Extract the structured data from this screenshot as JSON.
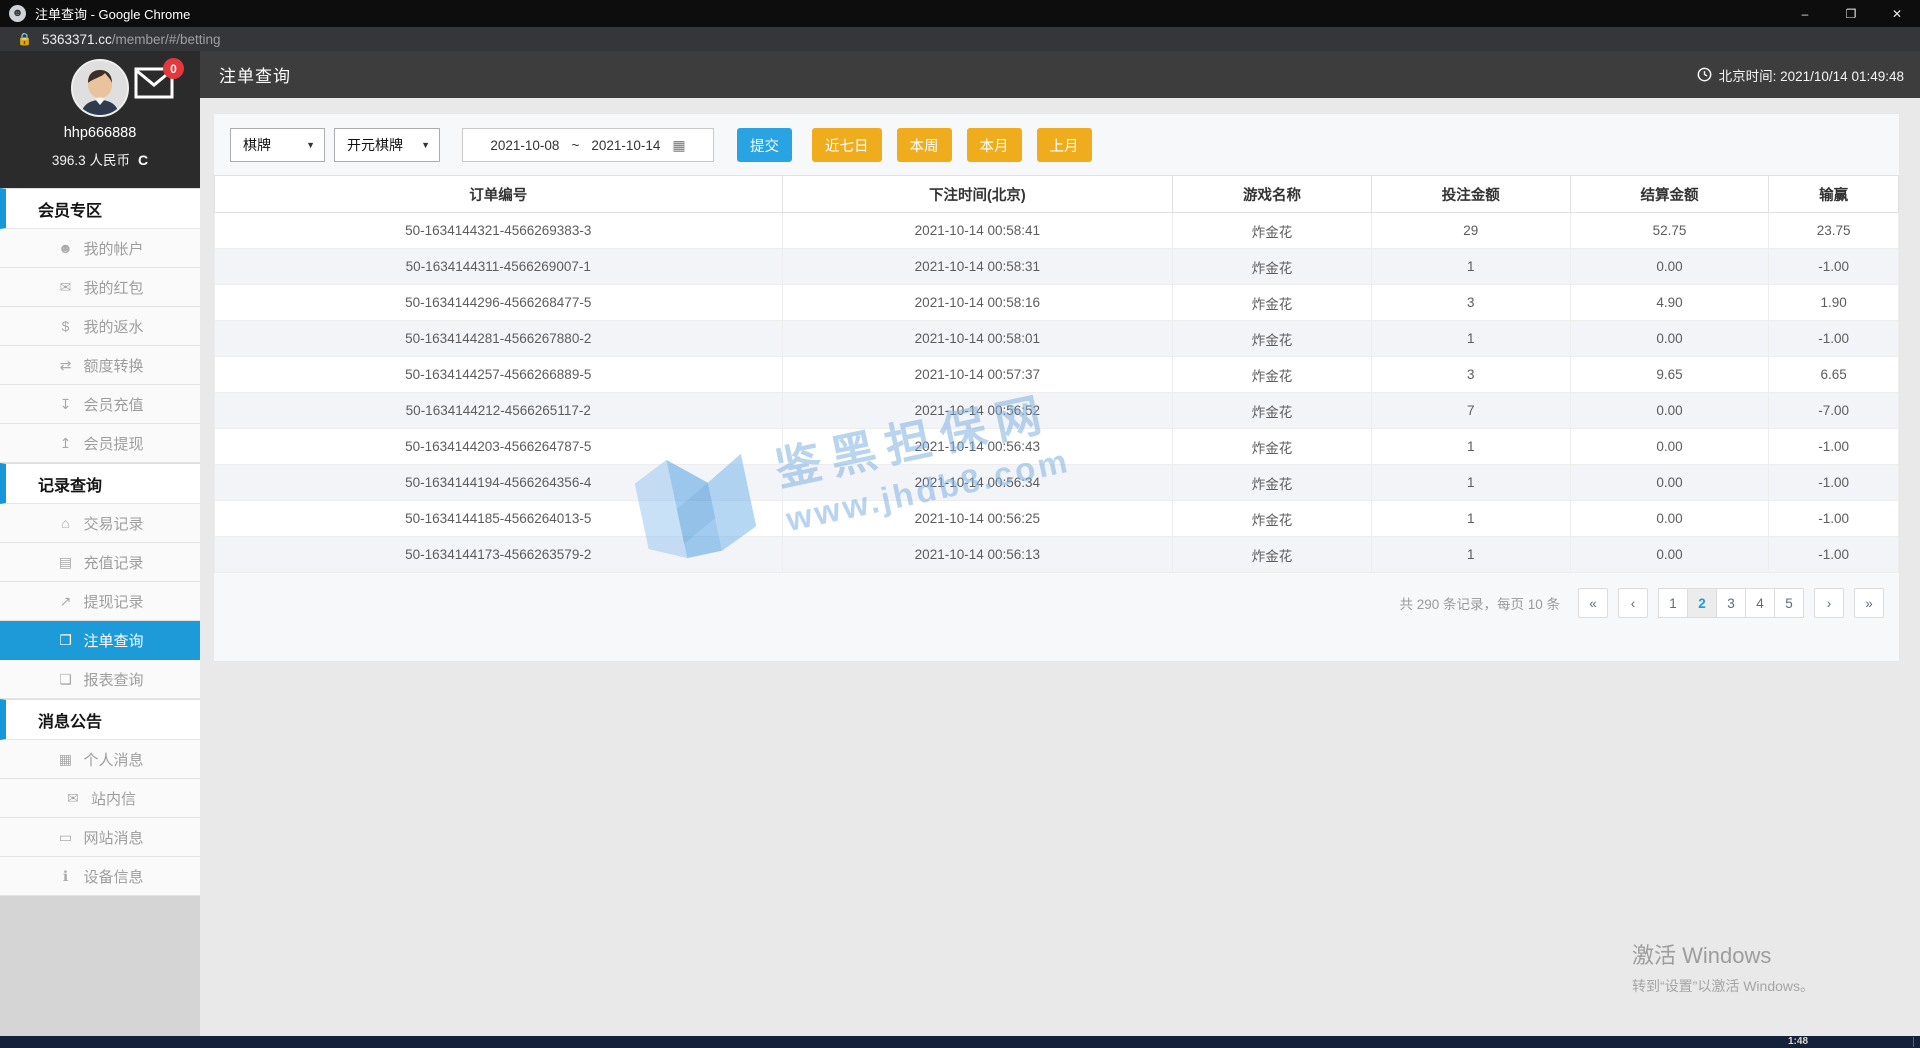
{
  "window": {
    "title": "注单查询 - Google Chrome",
    "controls": {
      "minimize": "–",
      "restore": "❐",
      "close": "✕"
    }
  },
  "browser": {
    "url_domain": "5363371.cc",
    "url_path": "/member/#/betting"
  },
  "sidebar": {
    "username": "hhp666888",
    "balance": "396.3 人民币",
    "refresh_glyph": "C",
    "mail_badge": "0",
    "sections": [
      {
        "title": "会员专区",
        "items": [
          {
            "label": "我的帐户",
            "icon": "user"
          },
          {
            "label": "我的红包",
            "icon": "red-packet"
          },
          {
            "label": "我的返水",
            "icon": "rebate"
          },
          {
            "label": "额度转换",
            "icon": "transfer"
          },
          {
            "label": "会员充值",
            "icon": "deposit"
          },
          {
            "label": "会员提现",
            "icon": "withdraw"
          }
        ]
      },
      {
        "title": "记录查询",
        "items": [
          {
            "label": "交易记录",
            "icon": "bank"
          },
          {
            "label": "充值记录",
            "icon": "card"
          },
          {
            "label": "提现记录",
            "icon": "chart"
          },
          {
            "label": "注单查询",
            "icon": "ticket",
            "active": true
          },
          {
            "label": "报表查询",
            "icon": "report"
          }
        ]
      },
      {
        "title": "消息公告",
        "items": [
          {
            "label": "个人消息",
            "icon": "id-card"
          },
          {
            "label": "站内信",
            "icon": "mail"
          },
          {
            "label": "网站消息",
            "icon": "monitor"
          },
          {
            "label": "设备信息",
            "icon": "info"
          }
        ]
      }
    ]
  },
  "header": {
    "title": "注单查询",
    "beijing_time": "北京时间: 2021/10/14 01:49:48"
  },
  "filters": {
    "category": "棋牌",
    "provider": "开元棋牌",
    "date_from": "2021-10-08",
    "date_separator": "~",
    "date_to": "2021-10-14",
    "submit": "提交",
    "quick": [
      "近七日",
      "本周",
      "本月",
      "上月"
    ]
  },
  "table": {
    "columns": [
      "订单编号",
      "下注时间(北京)",
      "游戏名称",
      "投注金额",
      "结算金额",
      "输赢"
    ],
    "rows": [
      [
        "50-1634144321-4566269383-3",
        "2021-10-14 00:58:41",
        "炸金花",
        "29",
        "52.75",
        "23.75"
      ],
      [
        "50-1634144311-4566269007-1",
        "2021-10-14 00:58:31",
        "炸金花",
        "1",
        "0.00",
        "-1.00"
      ],
      [
        "50-1634144296-4566268477-5",
        "2021-10-14 00:58:16",
        "炸金花",
        "3",
        "4.90",
        "1.90"
      ],
      [
        "50-1634144281-4566267880-2",
        "2021-10-14 00:58:01",
        "炸金花",
        "1",
        "0.00",
        "-1.00"
      ],
      [
        "50-1634144257-4566266889-5",
        "2021-10-14 00:57:37",
        "炸金花",
        "3",
        "9.65",
        "6.65"
      ],
      [
        "50-1634144212-4566265117-2",
        "2021-10-14 00:56:52",
        "炸金花",
        "7",
        "0.00",
        "-7.00"
      ],
      [
        "50-1634144203-4566264787-5",
        "2021-10-14 00:56:43",
        "炸金花",
        "1",
        "0.00",
        "-1.00"
      ],
      [
        "50-1634144194-4566264356-4",
        "2021-10-14 00:56:34",
        "炸金花",
        "1",
        "0.00",
        "-1.00"
      ],
      [
        "50-1634144185-4566264013-5",
        "2021-10-14 00:56:25",
        "炸金花",
        "1",
        "0.00",
        "-1.00"
      ],
      [
        "50-1634144173-4566263579-2",
        "2021-10-14 00:56:13",
        "炸金花",
        "1",
        "0.00",
        "-1.00"
      ]
    ]
  },
  "pagination": {
    "summary": "共 290 条记录，每页 10 条",
    "first": "«",
    "prev": "‹",
    "next": "›",
    "last": "»",
    "pages": [
      "1",
      "2",
      "3",
      "4",
      "5"
    ],
    "active_page": "2"
  },
  "watermark": {
    "line1": "鉴黑担保网",
    "line2": "www.jhdb8.com"
  },
  "windows_activation": {
    "line1": "激活 Windows",
    "line2": "转到“设置”以激活 Windows。"
  },
  "taskbar": {
    "clock": "1:48"
  },
  "colors": {
    "accent_blue": "#1d9bd9",
    "submit_blue": "#2aa3e3",
    "quick_yellow": "#efad1d",
    "badge_red": "#e4393c",
    "watermark_blue": "#7fb2e2"
  }
}
